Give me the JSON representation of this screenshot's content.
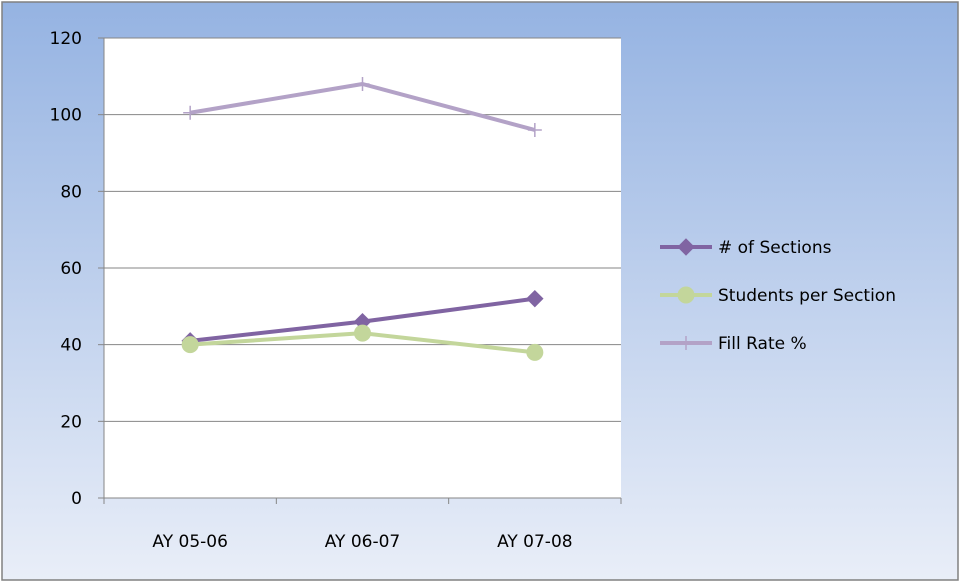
{
  "chart_data": {
    "type": "line",
    "categories": [
      "AY 05-06",
      "AY 06-07",
      "AY 07-08"
    ],
    "series": [
      {
        "name": "# of Sections",
        "values": [
          41,
          46,
          52
        ],
        "color": "#8064a2",
        "marker": "diamond"
      },
      {
        "name": "Students per Section",
        "values": [
          40,
          43,
          38
        ],
        "color": "#c3d69b",
        "marker": "circle"
      },
      {
        "name": "Fill Rate %",
        "values": [
          100.5,
          108,
          96
        ],
        "color": "#b3a2c7",
        "marker": "plus"
      }
    ],
    "ylim": [
      0,
      120
    ],
    "yticks": [
      0,
      20,
      40,
      60,
      80,
      100,
      120
    ],
    "grid": true,
    "legend_position": "right",
    "title": "",
    "xlabel": "",
    "ylabel": ""
  }
}
